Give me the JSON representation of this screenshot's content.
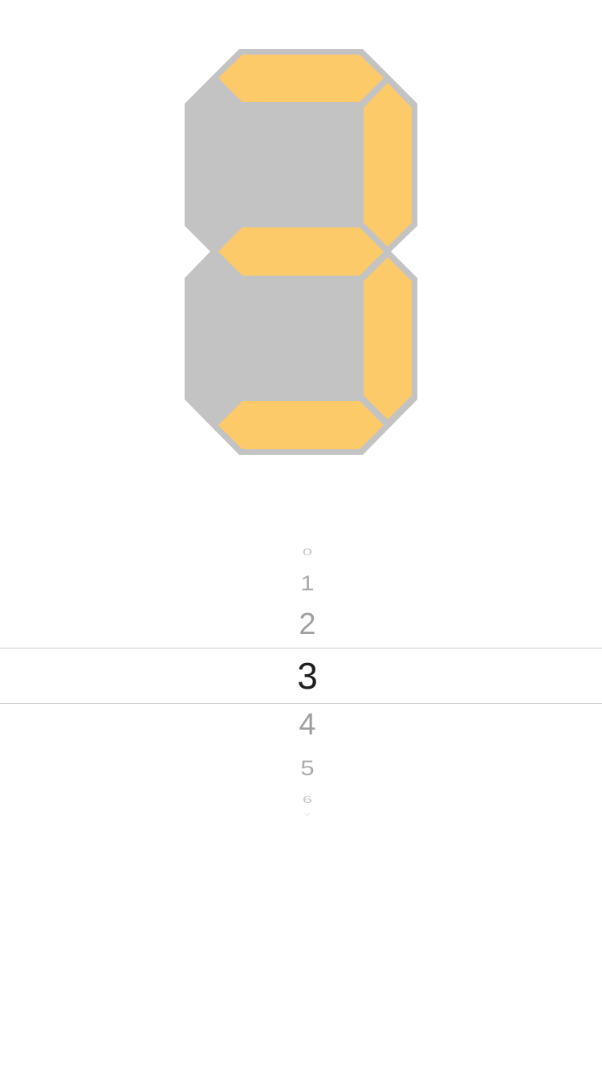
{
  "display": {
    "digit": "3",
    "body_color": "#c3c3c3",
    "lit_color": "#fdca69",
    "segments_lit": {
      "a": true,
      "b": true,
      "c": true,
      "d": true,
      "e": false,
      "f": false,
      "g": true
    }
  },
  "picker": {
    "selected": "3",
    "options": [
      "0",
      "1",
      "2",
      "3",
      "4",
      "5",
      "6",
      "7"
    ]
  }
}
